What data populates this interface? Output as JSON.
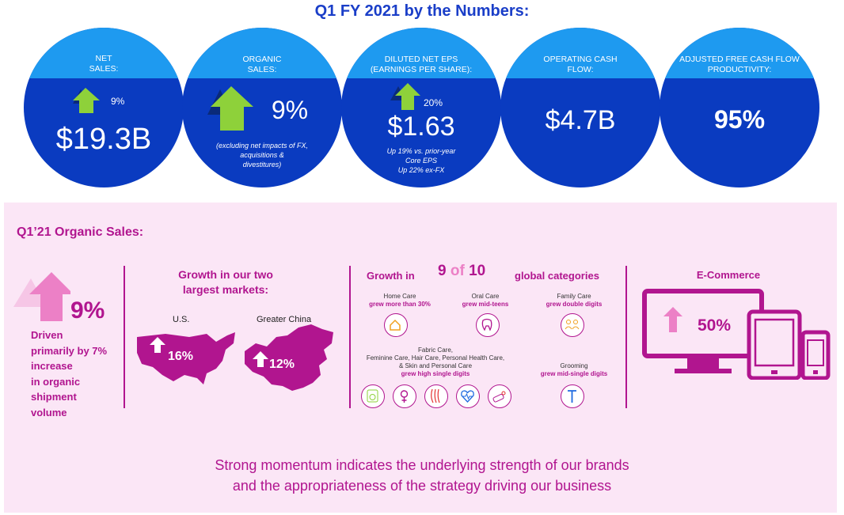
{
  "header": {
    "title": "Q1 FY 2021 by the Numbers:"
  },
  "kpis": [
    {
      "label_line1": "NET",
      "label_line2": "SALES:",
      "value": "$19.3B",
      "change": "9%"
    },
    {
      "label_line1": "ORGANIC",
      "label_line2": "SALES:",
      "value": "9%",
      "note_line1": "(excluding net impacts of FX,",
      "note_line2": "acquisitions &",
      "note_line3": "divestitures)"
    },
    {
      "label_line1": "DILUTED NET EPS",
      "label_line2": "(EARNINGS PER SHARE):",
      "value": "$1.63",
      "change": "20%",
      "note_line1": "Up 19% vs. prior-year",
      "note_line2": "Core EPS",
      "note_line3": "Up 22% ex-FX"
    },
    {
      "label_line1": "OPERATING CASH",
      "label_line2": "FLOW:",
      "value": "$4.7B"
    },
    {
      "label_line1": "ADJUSTED FREE CASH FLOW",
      "label_line2": "PRODUCTIVITY:",
      "value": "95%"
    }
  ],
  "organic": {
    "title": "Q1’21 Organic Sales:",
    "value": "9%",
    "driver_lines": [
      "Driven",
      "primarily by 7%",
      "increase",
      "in organic",
      "shipment",
      "volume"
    ]
  },
  "markets": {
    "title_line1": "Growth in our two",
    "title_line2": "largest markets:",
    "us_label": "U.S.",
    "us_value": "16%",
    "china_label": "Greater China",
    "china_value": "12%"
  },
  "categories": {
    "title_pre": "Growth in",
    "count_num": "9",
    "count_of": "of",
    "count_total": "10",
    "title_post": "global categories",
    "home": {
      "name": "Home Care",
      "growth": "grew more than 30%"
    },
    "oral": {
      "name": "Oral Care",
      "growth": "grew mid-teens"
    },
    "family": {
      "name": "Family Care",
      "growth": "grew double digits"
    },
    "fabric": {
      "line1": "Fabric Care,",
      "line2": "Feminine Care, Hair Care, Personal Health Care,",
      "line3": "& Skin and Personal Care",
      "growth": "grew high single digits"
    },
    "grooming": {
      "name": "Grooming",
      "growth": "grew mid-single digits"
    }
  },
  "ecommerce": {
    "title": "E-Commerce",
    "value": "50%"
  },
  "footer": {
    "line1": "Strong momentum indicates the underlying strength of our brands",
    "line2": "and the appropriateness of the strategy driving our business"
  },
  "colors": {
    "title_blue": "#1a3ec8",
    "cap_blue": "#1e9af0",
    "circle_blue": "#0a3bc0",
    "magenta": "#b1158f",
    "panel_pink": "#fbe6f6",
    "arrow_green": "#8ed13a",
    "arrow_pink": "#ec80c6"
  }
}
